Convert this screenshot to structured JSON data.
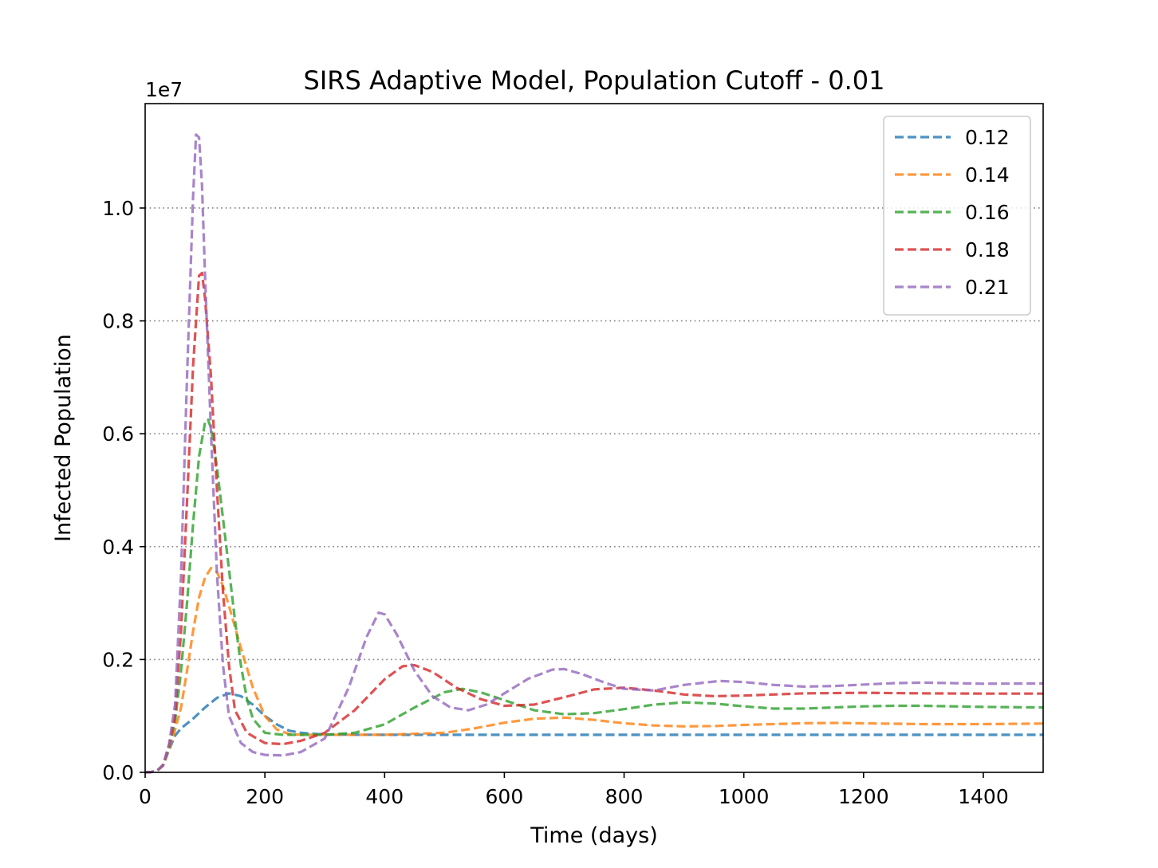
{
  "chart_data": {
    "type": "line",
    "title": "SIRS Adaptive Model, Population Cutoff - 0.01",
    "xlabel": "Time (days)",
    "ylabel": "Infected Population",
    "y_offset_label": "1e7",
    "xlim": [
      0,
      1500
    ],
    "ylim": [
      0,
      11850000
    ],
    "x_ticks": [
      0,
      200,
      400,
      600,
      800,
      1000,
      1200,
      1400
    ],
    "x_tick_labels": [
      "0",
      "200",
      "400",
      "600",
      "800",
      "1000",
      "1200",
      "1400"
    ],
    "y_ticks": [
      0,
      2000000,
      4000000,
      6000000,
      8000000,
      10000000
    ],
    "y_tick_labels": [
      "0.0",
      "0.2",
      "0.4",
      "0.6",
      "0.8",
      "1.0"
    ],
    "grid": "y-dotted",
    "legend_position": "top-right",
    "line_style": "dashed",
    "series": [
      {
        "name": "0.12",
        "color": "#1f77b4",
        "points": [
          [
            0,
            0
          ],
          [
            10,
            5000
          ],
          [
            20,
            30000
          ],
          [
            30,
            120000
          ],
          [
            40,
            400000
          ],
          [
            50,
            650000
          ],
          [
            60,
            780000
          ],
          [
            80,
            950000
          ],
          [
            100,
            1150000
          ],
          [
            120,
            1320000
          ],
          [
            140,
            1400000
          ],
          [
            160,
            1350000
          ],
          [
            180,
            1200000
          ],
          [
            200,
            1000000
          ],
          [
            220,
            850000
          ],
          [
            240,
            740000
          ],
          [
            260,
            700000
          ],
          [
            300,
            670000
          ],
          [
            400,
            665000
          ],
          [
            600,
            665000
          ],
          [
            800,
            665000
          ],
          [
            1000,
            665000
          ],
          [
            1200,
            665000
          ],
          [
            1500,
            665000
          ]
        ]
      },
      {
        "name": "0.14",
        "color": "#ff7f0e",
        "points": [
          [
            0,
            0
          ],
          [
            10,
            5000
          ],
          [
            20,
            30000
          ],
          [
            30,
            120000
          ],
          [
            40,
            420000
          ],
          [
            50,
            750000
          ],
          [
            60,
            1150000
          ],
          [
            70,
            1800000
          ],
          [
            80,
            2500000
          ],
          [
            90,
            3100000
          ],
          [
            100,
            3450000
          ],
          [
            110,
            3620000
          ],
          [
            120,
            3550000
          ],
          [
            130,
            3300000
          ],
          [
            140,
            2950000
          ],
          [
            160,
            2200000
          ],
          [
            180,
            1500000
          ],
          [
            200,
            1000000
          ],
          [
            220,
            760000
          ],
          [
            240,
            680000
          ],
          [
            260,
            665000
          ],
          [
            300,
            665000
          ],
          [
            400,
            665000
          ],
          [
            500,
            700000
          ],
          [
            550,
            780000
          ],
          [
            600,
            880000
          ],
          [
            650,
            950000
          ],
          [
            700,
            970000
          ],
          [
            750,
            930000
          ],
          [
            800,
            870000
          ],
          [
            850,
            830000
          ],
          [
            900,
            815000
          ],
          [
            950,
            820000
          ],
          [
            1000,
            840000
          ],
          [
            1100,
            870000
          ],
          [
            1150,
            875000
          ],
          [
            1200,
            868000
          ],
          [
            1300,
            855000
          ],
          [
            1400,
            855000
          ],
          [
            1500,
            865000
          ]
        ]
      },
      {
        "name": "0.16",
        "color": "#2ca02c",
        "points": [
          [
            0,
            0
          ],
          [
            10,
            5000
          ],
          [
            20,
            30000
          ],
          [
            30,
            130000
          ],
          [
            40,
            450000
          ],
          [
            50,
            900000
          ],
          [
            60,
            1800000
          ],
          [
            70,
            3000000
          ],
          [
            80,
            4400000
          ],
          [
            90,
            5600000
          ],
          [
            100,
            6200000
          ],
          [
            105,
            6250000
          ],
          [
            110,
            6100000
          ],
          [
            120,
            5400000
          ],
          [
            130,
            4500000
          ],
          [
            140,
            3600000
          ],
          [
            150,
            2700000
          ],
          [
            160,
            1900000
          ],
          [
            170,
            1300000
          ],
          [
            180,
            950000
          ],
          [
            200,
            700000
          ],
          [
            230,
            665000
          ],
          [
            300,
            665000
          ],
          [
            350,
            700000
          ],
          [
            400,
            850000
          ],
          [
            450,
            1150000
          ],
          [
            500,
            1420000
          ],
          [
            530,
            1480000
          ],
          [
            560,
            1420000
          ],
          [
            600,
            1280000
          ],
          [
            650,
            1100000
          ],
          [
            700,
            1030000
          ],
          [
            750,
            1050000
          ],
          [
            800,
            1120000
          ],
          [
            850,
            1200000
          ],
          [
            900,
            1240000
          ],
          [
            950,
            1220000
          ],
          [
            1000,
            1170000
          ],
          [
            1050,
            1130000
          ],
          [
            1100,
            1130000
          ],
          [
            1150,
            1150000
          ],
          [
            1200,
            1170000
          ],
          [
            1250,
            1180000
          ],
          [
            1300,
            1180000
          ],
          [
            1400,
            1160000
          ],
          [
            1500,
            1150000
          ]
        ]
      },
      {
        "name": "0.18",
        "color": "#d62728",
        "points": [
          [
            0,
            0
          ],
          [
            10,
            5000
          ],
          [
            20,
            30000
          ],
          [
            30,
            130000
          ],
          [
            40,
            480000
          ],
          [
            50,
            1000000
          ],
          [
            60,
            2500000
          ],
          [
            70,
            4800000
          ],
          [
            80,
            7200000
          ],
          [
            90,
            8800000
          ],
          [
            95,
            8850000
          ],
          [
            100,
            8400000
          ],
          [
            110,
            7000000
          ],
          [
            120,
            5000000
          ],
          [
            130,
            3200000
          ],
          [
            140,
            1900000
          ],
          [
            150,
            1100000
          ],
          [
            170,
            700000
          ],
          [
            200,
            520000
          ],
          [
            230,
            500000
          ],
          [
            260,
            560000
          ],
          [
            300,
            700000
          ],
          [
            350,
            1100000
          ],
          [
            400,
            1650000
          ],
          [
            430,
            1880000
          ],
          [
            450,
            1900000
          ],
          [
            480,
            1780000
          ],
          [
            520,
            1500000
          ],
          [
            560,
            1300000
          ],
          [
            600,
            1180000
          ],
          [
            650,
            1200000
          ],
          [
            700,
            1330000
          ],
          [
            750,
            1470000
          ],
          [
            800,
            1500000
          ],
          [
            850,
            1450000
          ],
          [
            900,
            1380000
          ],
          [
            950,
            1350000
          ],
          [
            1000,
            1360000
          ],
          [
            1050,
            1380000
          ],
          [
            1100,
            1400000
          ],
          [
            1200,
            1410000
          ],
          [
            1300,
            1400000
          ],
          [
            1400,
            1395000
          ],
          [
            1500,
            1395000
          ]
        ]
      },
      {
        "name": "0.21",
        "color": "#9467bd",
        "points": [
          [
            0,
            0
          ],
          [
            10,
            5000
          ],
          [
            20,
            30000
          ],
          [
            30,
            130000
          ],
          [
            40,
            500000
          ],
          [
            50,
            1200000
          ],
          [
            60,
            3500000
          ],
          [
            70,
            7000000
          ],
          [
            80,
            10200000
          ],
          [
            85,
            11300000
          ],
          [
            90,
            11250000
          ],
          [
            95,
            10400000
          ],
          [
            100,
            8800000
          ],
          [
            110,
            6000000
          ],
          [
            120,
            3500000
          ],
          [
            130,
            1900000
          ],
          [
            140,
            1000000
          ],
          [
            160,
            520000
          ],
          [
            180,
            360000
          ],
          [
            200,
            310000
          ],
          [
            230,
            300000
          ],
          [
            260,
            360000
          ],
          [
            300,
            600000
          ],
          [
            340,
            1500000
          ],
          [
            370,
            2400000
          ],
          [
            390,
            2830000
          ],
          [
            400,
            2800000
          ],
          [
            420,
            2450000
          ],
          [
            450,
            1800000
          ],
          [
            480,
            1350000
          ],
          [
            510,
            1150000
          ],
          [
            540,
            1100000
          ],
          [
            570,
            1200000
          ],
          [
            600,
            1400000
          ],
          [
            640,
            1660000
          ],
          [
            680,
            1820000
          ],
          [
            700,
            1830000
          ],
          [
            730,
            1740000
          ],
          [
            770,
            1580000
          ],
          [
            800,
            1480000
          ],
          [
            850,
            1450000
          ],
          [
            900,
            1550000
          ],
          [
            960,
            1620000
          ],
          [
            1000,
            1600000
          ],
          [
            1050,
            1550000
          ],
          [
            1100,
            1520000
          ],
          [
            1150,
            1530000
          ],
          [
            1250,
            1580000
          ],
          [
            1300,
            1590000
          ],
          [
            1400,
            1570000
          ],
          [
            1500,
            1575000
          ]
        ]
      }
    ]
  }
}
